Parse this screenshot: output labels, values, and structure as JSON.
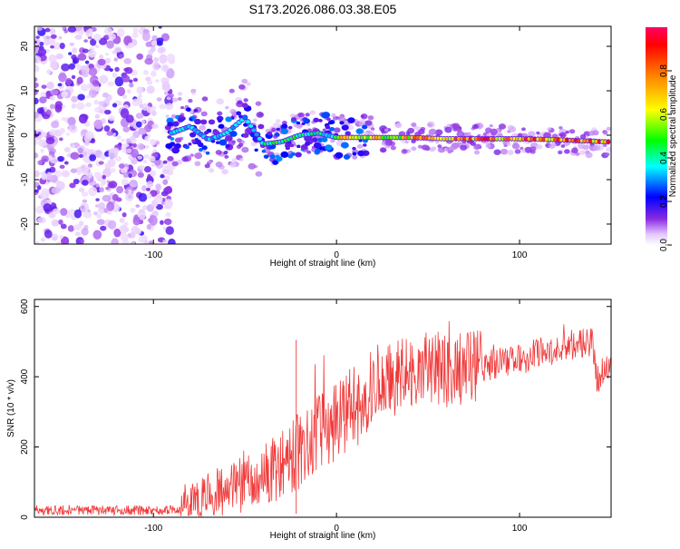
{
  "title": "S173.2026.086.03.38.E05",
  "chart_data": [
    {
      "type": "heatmap",
      "xlabel": "Height of straight line (km)",
      "ylabel": "Frequency (Hz)",
      "xlim": [
        -165,
        150
      ],
      "ylim": [
        -24.5,
        24.5
      ],
      "xticks": [
        -100,
        0,
        100
      ],
      "yticks": [
        -20,
        -10,
        0,
        10,
        20
      ],
      "ridge": {
        "x": [
          -90,
          -80,
          -70,
          -60,
          -50,
          -40,
          -30,
          -20,
          -10,
          0,
          20,
          40,
          60,
          80,
          100,
          120,
          148
        ],
        "y": [
          0.5,
          2,
          -1,
          0.5,
          4,
          -2,
          -1.5,
          0,
          0.5,
          -0.5,
          -0.5,
          -0.5,
          -0.8,
          -0.8,
          -0.8,
          -1,
          -1.5
        ]
      },
      "noise_region_x": [
        -165,
        -90
      ],
      "colorbar": {
        "label": "Normalized spectral amplitude",
        "range": [
          0,
          1
        ],
        "ticks": [
          0.0,
          0.2,
          0.4,
          0.6,
          0.8
        ]
      }
    },
    {
      "type": "line",
      "xlabel": "Height of straight line (km)",
      "ylabel": "SNR (10 * v/v)",
      "xlim": [
        -165,
        150
      ],
      "ylim": [
        0,
        620
      ],
      "xticks": [
        -100,
        0,
        100
      ],
      "yticks": [
        0,
        200,
        400,
        600
      ],
      "color": "#f03a3a",
      "series": [
        {
          "name": "SNR",
          "x": [
            -165,
            -150,
            -130,
            -110,
            -95,
            -85,
            -80,
            -70,
            -60,
            -50,
            -40,
            -30,
            -25,
            -20,
            -10,
            0,
            10,
            20,
            30,
            40,
            50,
            60,
            70,
            80,
            90,
            100,
            110,
            120,
            130,
            140,
            142,
            145,
            150
          ],
          "y": [
            20,
            20,
            20,
            20,
            20,
            22,
            30,
            55,
            75,
            95,
            115,
            150,
            170,
            190,
            240,
            270,
            320,
            360,
            385,
            410,
            420,
            420,
            425,
            430,
            440,
            450,
            465,
            480,
            490,
            495,
            390,
            410,
            420
          ]
        }
      ]
    }
  ]
}
